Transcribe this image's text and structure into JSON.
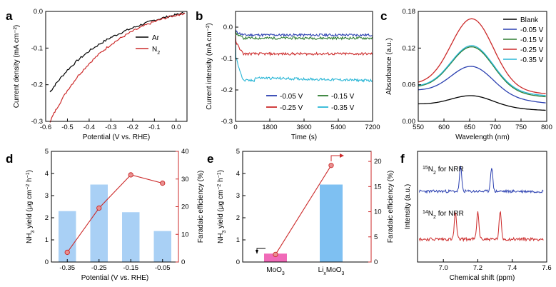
{
  "chart_data": [
    {
      "id": "a",
      "type": "line",
      "panel_label": "a",
      "xlabel": "Potential (V vs. RHE)",
      "ylabel": "Current density (mA cm⁻²)",
      "xlim": [
        -0.6,
        0.05
      ],
      "ylim": [
        -0.3,
        0.0
      ],
      "xticks": [
        "-0.6",
        "-0.5",
        "-0.4",
        "-0.3",
        "-0.2",
        "-0.1",
        "0.0"
      ],
      "yticks": [
        "0.0",
        "-0.1",
        "-0.2",
        "-0.3"
      ],
      "legend": [
        {
          "label": "Ar",
          "color": "#000000"
        },
        {
          "label": "N",
          "sub": "2",
          "color": "#cc2a2a"
        }
      ],
      "series": [
        {
          "name": "Ar",
          "color": "#000000",
          "x": [
            -0.58,
            -0.55,
            -0.5,
            -0.45,
            -0.4,
            -0.35,
            -0.3,
            -0.25,
            -0.2,
            -0.15,
            -0.1,
            -0.05,
            0.0,
            0.04
          ],
          "y": [
            -0.22,
            -0.195,
            -0.16,
            -0.132,
            -0.108,
            -0.088,
            -0.071,
            -0.057,
            -0.045,
            -0.034,
            -0.024,
            -0.016,
            -0.009,
            -0.004
          ]
        },
        {
          "name": "N2",
          "color": "#cc2a2a",
          "x": [
            -0.58,
            -0.55,
            -0.5,
            -0.45,
            -0.4,
            -0.35,
            -0.3,
            -0.25,
            -0.2,
            -0.15,
            -0.1,
            -0.05,
            0.0,
            0.04
          ],
          "y": [
            -0.3,
            -0.265,
            -0.215,
            -0.175,
            -0.142,
            -0.114,
            -0.09,
            -0.071,
            -0.054,
            -0.04,
            -0.028,
            -0.018,
            -0.01,
            -0.005
          ]
        }
      ]
    },
    {
      "id": "b",
      "type": "line",
      "panel_label": "b",
      "xlabel": "Time (s)",
      "ylabel": "Current intensity (mA cm⁻²)",
      "xlim": [
        0,
        7200
      ],
      "ylim": [
        -0.3,
        0.05
      ],
      "xticks": [
        "0",
        "1800",
        "3600",
        "5400",
        "7200"
      ],
      "yticks": [
        "0.0",
        "-0.1",
        "-0.2",
        "-0.3"
      ],
      "legend": [
        {
          "label": "-0.05 V",
          "color": "#2a3fb0"
        },
        {
          "label": "-0.15 V",
          "color": "#2e7d32"
        },
        {
          "label": "-0.25 V",
          "color": "#cc2a2a"
        },
        {
          "label": "-0.35 V",
          "color": "#2ab6d6"
        }
      ],
      "series": [
        {
          "name": "-0.05 V",
          "color": "#2a3fb0",
          "steady": -0.025
        },
        {
          "name": "-0.15 V",
          "color": "#2e7d32",
          "steady": -0.035
        },
        {
          "name": "-0.25 V",
          "color": "#cc2a2a",
          "steady": -0.085
        },
        {
          "name": "-0.35 V",
          "color": "#2ab6d6",
          "steady": -0.17
        }
      ]
    },
    {
      "id": "c",
      "type": "line",
      "panel_label": "c",
      "xlabel": "Wavelength (nm)",
      "ylabel": "Absorbance (a.u.)",
      "xlim": [
        550,
        800
      ],
      "ylim": [
        0.0,
        0.18
      ],
      "xticks": [
        "550",
        "600",
        "650",
        "700",
        "750",
        "800"
      ],
      "yticks": [
        "0.00",
        "0.06",
        "0.12",
        "0.18"
      ],
      "legend": [
        {
          "label": "Blank",
          "color": "#000000"
        },
        {
          "label": "-0.05 V",
          "color": "#2a3fb0"
        },
        {
          "label": "-0.15 V",
          "color": "#2e7d32"
        },
        {
          "label": "-0.25 V",
          "color": "#cc2a2a"
        },
        {
          "label": "-0.35 V",
          "color": "#2ab6d6"
        }
      ],
      "series": [
        {
          "name": "Blank",
          "color": "#000000",
          "peak": 0.042,
          "base": 0.028,
          "tail": 0.018
        },
        {
          "name": "-0.05 V",
          "color": "#2a3fb0",
          "peak": 0.09,
          "base": 0.05,
          "tail": 0.03
        },
        {
          "name": "-0.15 V",
          "color": "#2e7d32",
          "peak": 0.122,
          "base": 0.055,
          "tail": 0.04
        },
        {
          "name": "-0.25 V",
          "color": "#cc2a2a",
          "peak": 0.168,
          "base": 0.06,
          "tail": 0.045
        },
        {
          "name": "-0.35 V",
          "color": "#2ab6d6",
          "peak": 0.124,
          "base": 0.056,
          "tail": 0.042
        }
      ]
    },
    {
      "id": "d",
      "type": "bar+line",
      "panel_label": "d",
      "xlabel": "Potential (V vs. RHE)",
      "ylabel": "NH₃ yield (μg cm⁻² h⁻¹)",
      "y2label": "Faradaic efficiency (%)",
      "categories": [
        "-0.35",
        "-0.25",
        "-0.15",
        "-0.05"
      ],
      "ylim": [
        0,
        5
      ],
      "y2lim": [
        0,
        40
      ],
      "yticks": [
        "0",
        "1",
        "2",
        "3",
        "4",
        "5"
      ],
      "y2ticks": [
        "0",
        "10",
        "20",
        "30",
        "40"
      ],
      "bars": [
        2.3,
        3.5,
        2.25,
        1.4
      ],
      "line": [
        3.5,
        19.5,
        31.5,
        28.5
      ]
    },
    {
      "id": "e",
      "type": "bar+line",
      "panel_label": "e",
      "ylabel": "NH₃ yield (μg cm⁻² h⁻¹)",
      "y2label": "Faradaic efficiency (%)",
      "categories": [
        {
          "main": "MoO",
          "sub": "3"
        },
        {
          "main": "Li",
          "sub": "x",
          "main2": "MoO",
          "sub2": "3"
        }
      ],
      "ylim": [
        0,
        5
      ],
      "y2lim": [
        0,
        22
      ],
      "yticks": [
        "0",
        "1",
        "2",
        "3",
        "4",
        "5"
      ],
      "y2ticks": [
        "0",
        "5",
        "10",
        "15",
        "20"
      ],
      "bars": [
        0.38,
        3.5
      ],
      "line": [
        1.5,
        19.2
      ]
    },
    {
      "id": "f",
      "type": "line",
      "panel_label": "f",
      "xlabel": "Chemical shift (ppm)",
      "ylabel": "Intensity (a.u.)",
      "xlim": [
        6.85,
        7.6
      ],
      "xticks": [
        "7.0",
        "7.2",
        "7.4",
        "7.6"
      ],
      "annotations": [
        {
          "pre": "15",
          "main": "N",
          "sub": "2",
          "post": " for NRR"
        },
        {
          "pre": "14",
          "main": "N",
          "sub": "2",
          "post": " for NRR"
        }
      ],
      "series": [
        {
          "name": "15N2",
          "color": "#2a3fb0",
          "peaks": [
            7.1,
            7.28
          ]
        },
        {
          "name": "14N2",
          "color": "#cc2a2a",
          "peaks": [
            7.07,
            7.2,
            7.33
          ]
        }
      ]
    }
  ]
}
